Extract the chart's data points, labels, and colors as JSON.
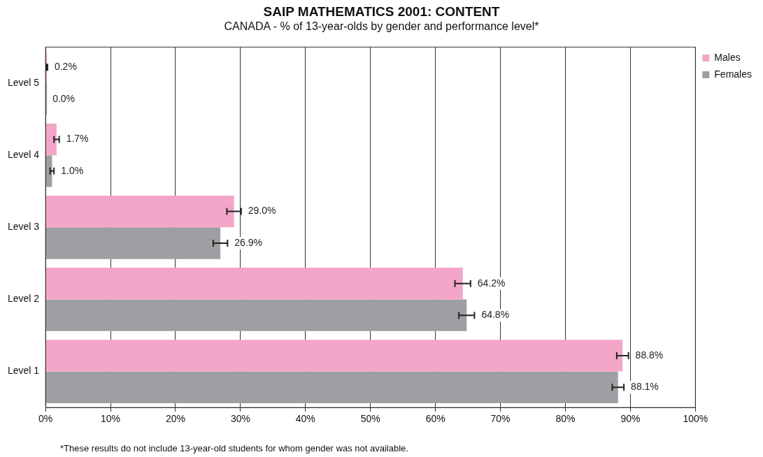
{
  "chart_data": {
    "type": "bar",
    "orientation": "horizontal",
    "title": "SAIP MATHEMATICS 2001: CONTENT",
    "subtitle": "CANADA - % of 13-year-olds by gender and performance level*",
    "categories": [
      "Level 5",
      "Level 4",
      "Level 3",
      "Level 2",
      "Level 1"
    ],
    "series": [
      {
        "name": "Males",
        "color": "#f4a6c8",
        "values": [
          0.2,
          1.7,
          29.0,
          64.2,
          88.8
        ],
        "errors": [
          0.1,
          0.4,
          1.1,
          1.2,
          0.9
        ],
        "value_labels": [
          "0.2%",
          "1.7%",
          "29.0%",
          "64.2%",
          "88.8%"
        ]
      },
      {
        "name": "Females",
        "color": "#9d9fa2",
        "values": [
          0.0,
          1.0,
          26.9,
          64.8,
          88.1
        ],
        "errors": [
          null,
          0.3,
          1.1,
          1.2,
          0.9
        ],
        "value_labels": [
          "0.0%",
          "1.0%",
          "26.9%",
          "64.8%",
          "88.1%"
        ]
      }
    ],
    "xlim": [
      0,
      100
    ],
    "xticks": [
      {
        "value": 0,
        "label": "0%"
      },
      {
        "value": 10,
        "label": "10%"
      },
      {
        "value": 20,
        "label": "20%"
      },
      {
        "value": 30,
        "label": "30%"
      },
      {
        "value": 40,
        "label": "40%"
      },
      {
        "value": 50,
        "label": "50%"
      },
      {
        "value": 60,
        "label": "60%"
      },
      {
        "value": 70,
        "label": "70%"
      },
      {
        "value": 80,
        "label": "80%"
      },
      {
        "value": 90,
        "label": "90%"
      },
      {
        "value": 100,
        "label": "100%"
      }
    ],
    "grid": "x",
    "legend": "top right",
    "annotations": [
      "*These results do not include 13-year-old students for whom gender was not available."
    ]
  }
}
